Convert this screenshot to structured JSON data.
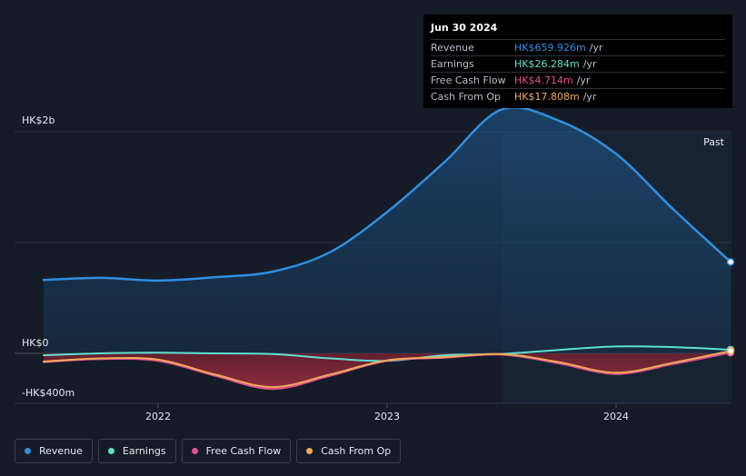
{
  "tooltip": {
    "date": "Jun 30 2024",
    "rows": [
      {
        "label": "Revenue",
        "value": "HK$659.926m",
        "unit": "/yr",
        "color": "#2f8fe0"
      },
      {
        "label": "Earnings",
        "value": "HK$26.284m",
        "unit": "/yr",
        "color": "#5fe0cf"
      },
      {
        "label": "Free Cash Flow",
        "value": "HK$4.714m",
        "unit": "/yr",
        "color": "#e2508f"
      },
      {
        "label": "Cash From Op",
        "value": "HK$17.808m",
        "unit": "/yr",
        "color": "#f0a95a"
      }
    ]
  },
  "legend": [
    {
      "label": "Revenue",
      "color": "#2f8fe0"
    },
    {
      "label": "Earnings",
      "color": "#5fe0cf"
    },
    {
      "label": "Free Cash Flow",
      "color": "#e2508f"
    },
    {
      "label": "Cash From Op",
      "color": "#f0a95a"
    }
  ],
  "chart_data": {
    "type": "area",
    "y_labels": [
      "HK$2b",
      "HK$0",
      "-HK$400m"
    ],
    "x_labels": [
      "2022",
      "2023",
      "2024"
    ],
    "past_label": "Past",
    "ylim": [
      -400,
      1800
    ],
    "x_range": [
      2021.4,
      2024.5
    ],
    "x_ticks": [
      2022,
      2023,
      2024
    ],
    "gridlines": [
      1600,
      800,
      0,
      -400
    ],
    "past_start": 2023.5,
    "series": [
      {
        "name": "Revenue",
        "color": "#2f8fe0",
        "fill": true,
        "x": [
          2021.5,
          2021.75,
          2022.0,
          2022.25,
          2022.5,
          2022.75,
          2023.0,
          2023.25,
          2023.5,
          2023.75,
          2024.0,
          2024.25,
          2024.5
        ],
        "y": [
          530,
          545,
          525,
          550,
          590,
          730,
          1020,
          1380,
          1760,
          1680,
          1440,
          1040,
          660
        ]
      },
      {
        "name": "Earnings",
        "color": "#5fe0cf",
        "fill": false,
        "x": [
          2021.5,
          2021.75,
          2022.0,
          2022.25,
          2022.5,
          2022.75,
          2023.0,
          2023.25,
          2023.5,
          2023.75,
          2024.0,
          2024.25,
          2024.5
        ],
        "y": [
          -15,
          0,
          5,
          0,
          -5,
          -40,
          -60,
          -15,
          -5,
          25,
          50,
          45,
          26
        ]
      },
      {
        "name": "Free Cash Flow",
        "color": "#e2508f",
        "fill": true,
        "x": [
          2021.5,
          2021.75,
          2022.0,
          2022.25,
          2022.5,
          2022.75,
          2023.0,
          2023.25,
          2023.5,
          2023.75,
          2024.0,
          2024.25,
          2024.5
        ],
        "y": [
          -70,
          -45,
          -60,
          -180,
          -285,
          -180,
          -60,
          -35,
          -10,
          -80,
          -165,
          -85,
          5
        ]
      },
      {
        "name": "Cash From Op",
        "color": "#f0a95a",
        "fill": false,
        "x": [
          2021.5,
          2021.75,
          2022.0,
          2022.25,
          2022.5,
          2022.75,
          2023.0,
          2023.25,
          2023.5,
          2023.75,
          2024.0,
          2024.25,
          2024.5
        ],
        "y": [
          -65,
          -40,
          -50,
          -170,
          -270,
          -170,
          -55,
          -30,
          -5,
          -70,
          -155,
          -75,
          18
        ]
      }
    ]
  }
}
